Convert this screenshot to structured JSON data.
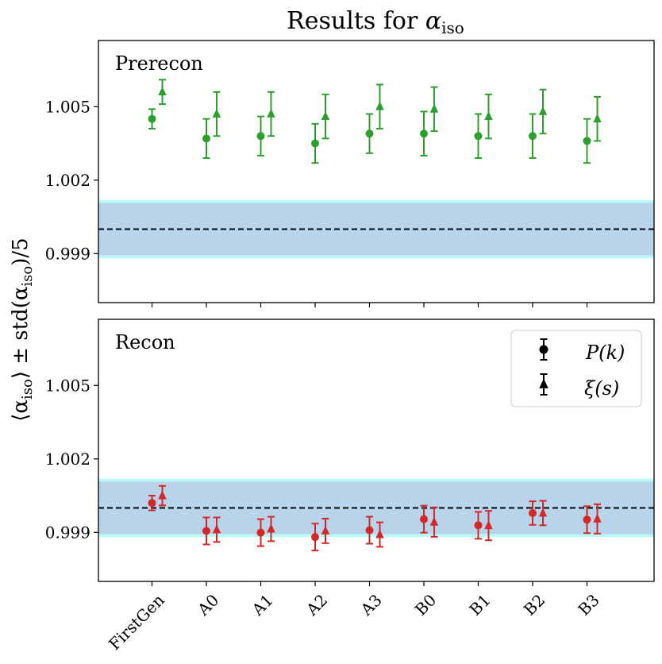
{
  "chart_data": {
    "type": "errorbar",
    "title": "Results for αiso",
    "title_parts": {
      "prefix": "Results for ",
      "symbol": "α",
      "sub": "iso"
    },
    "ylabel": "⟨αiso⟩ ± std(αiso)/5",
    "ylabel_parts": {
      "open": "⟨α",
      "sub1": "iso",
      "mid": "⟩ ± std(α",
      "sub2": "iso",
      "close": ")/5"
    },
    "categories": [
      "FirstGen",
      "A0",
      "A1",
      "A2",
      "A3",
      "B0",
      "B1",
      "B2",
      "B3"
    ],
    "ylim": [
      0.997,
      1.0077
    ],
    "yticks": [
      0.999,
      1.002,
      1.005
    ],
    "ytick_labels": [
      "0.999",
      "1.002",
      "1.005"
    ],
    "reference_line": 1.0,
    "band_inner": [
      0.99893,
      1.00107
    ],
    "band_outer": [
      0.99881,
      1.00119
    ],
    "legend": [
      {
        "marker": "circle",
        "label": "P(k)"
      },
      {
        "marker": "triangle",
        "label": "ξ(s)"
      }
    ],
    "panels": [
      {
        "name": "Prerecon",
        "color": "#2ca02c",
        "series": [
          {
            "name": "P(k)",
            "marker": "circle",
            "values": [
              1.0045,
              1.0037,
              1.0038,
              1.0035,
              1.0039,
              1.0039,
              1.0038,
              1.0038,
              1.0036
            ],
            "errors": [
              0.0004,
              0.0008,
              0.0008,
              0.0008,
              0.0008,
              0.0009,
              0.0009,
              0.0009,
              0.0009
            ]
          },
          {
            "name": "ξ(s)",
            "marker": "triangle",
            "values": [
              1.0056,
              1.0047,
              1.0047,
              1.0046,
              1.005,
              1.0049,
              1.0046,
              1.0048,
              1.0045
            ],
            "errors": [
              0.0005,
              0.0009,
              0.0009,
              0.0009,
              0.0009,
              0.0009,
              0.0009,
              0.0009,
              0.0009
            ]
          }
        ]
      },
      {
        "name": "Recon",
        "color": "#d62728",
        "series": [
          {
            "name": "P(k)",
            "marker": "circle",
            "values": [
              1.0002,
              0.99906,
              0.99899,
              0.99881,
              0.99909,
              0.99954,
              0.99929,
              0.99979,
              0.99952
            ],
            "errors": [
              0.0003,
              0.00055,
              0.00055,
              0.00055,
              0.00055,
              0.00055,
              0.00055,
              0.00048,
              0.00055
            ]
          },
          {
            "name": "ξ(s)",
            "marker": "triangle",
            "values": [
              1.0005,
              0.99911,
              0.99914,
              0.99906,
              0.99891,
              0.99942,
              0.99928,
              0.99979,
              0.99955
            ],
            "errors": [
              0.0004,
              0.0005,
              0.0005,
              0.0005,
              0.0005,
              0.0006,
              0.0006,
              0.0005,
              0.0006
            ]
          }
        ]
      }
    ]
  }
}
